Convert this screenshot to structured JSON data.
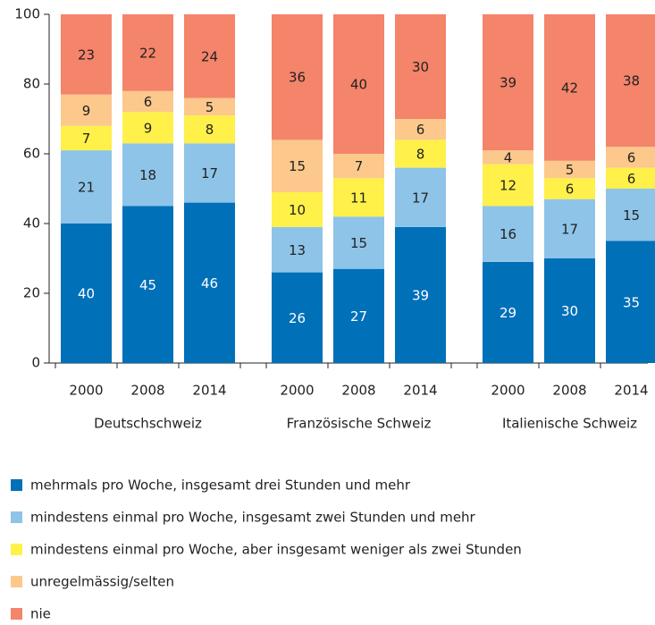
{
  "chart_data": {
    "type": "stacked_bar",
    "categories": [
      "2000",
      "2008",
      "2014",
      "2000",
      "2008",
      "2014",
      "2000",
      "2008",
      "2014"
    ],
    "group_labels": [
      "Deutschschweiz",
      "Französische Schweiz",
      "Italienische Schweiz"
    ],
    "series": [
      {
        "name": "mehrmals pro Woche, insgesamt drei Stunden und mehr",
        "color": "#0070b8",
        "values": [
          40,
          45,
          46,
          26,
          27,
          39,
          29,
          30,
          35
        ]
      },
      {
        "name": "mindestens einmal pro Woche, insgesamt zwei Stunden und mehr",
        "color": "#8ec4e8",
        "values": [
          21,
          18,
          17,
          13,
          15,
          17,
          16,
          17,
          15
        ]
      },
      {
        "name": "mindestens einmal pro Woche, aber insgesamt weniger als zwei Stunden",
        "color": "#fff04a",
        "values": [
          7,
          9,
          8,
          10,
          11,
          8,
          12,
          6,
          6
        ]
      },
      {
        "name": "unregelmässig/selten",
        "color": "#fcc88c",
        "values": [
          9,
          6,
          5,
          15,
          7,
          6,
          4,
          5,
          6
        ]
      },
      {
        "name": "nie",
        "color": "#f4846a",
        "values": [
          23,
          22,
          24,
          36,
          40,
          30,
          39,
          42,
          38
        ]
      }
    ],
    "ylim": [
      0,
      100
    ],
    "yticks": [
      0,
      20,
      40,
      60,
      80,
      100
    ],
    "grid": false,
    "legend": "bottom"
  }
}
